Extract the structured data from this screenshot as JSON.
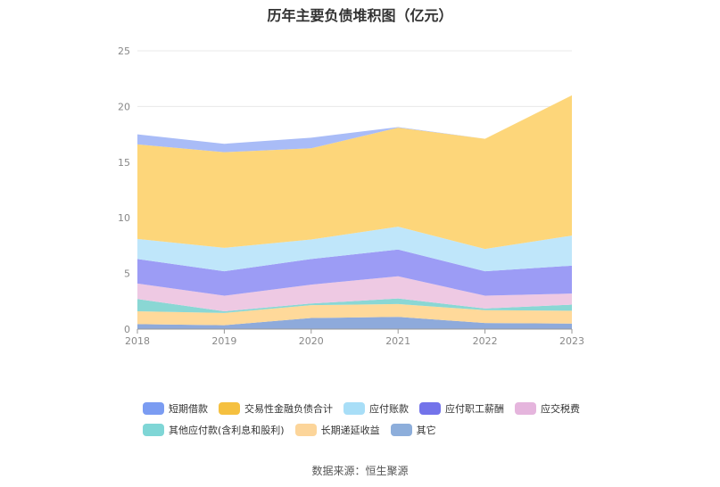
{
  "chart_data": {
    "type": "area",
    "stacked": true,
    "title": "历年主要负债堆积图（亿元）",
    "x": [
      "2018",
      "2019",
      "2020",
      "2021",
      "2022",
      "2023"
    ],
    "ylim": [
      0,
      25
    ],
    "yticks": [
      0,
      5,
      10,
      15,
      20,
      25
    ],
    "grid": true,
    "legend_position": "bottom",
    "series": [
      {
        "name": "其它",
        "color": "#8eaadb",
        "values": [
          0.45,
          0.35,
          1.0,
          1.1,
          0.55,
          0.5
        ]
      },
      {
        "name": "长期递延收益",
        "color": "#ffd99a",
        "values": [
          1.15,
          1.1,
          1.15,
          1.15,
          1.15,
          1.15
        ]
      },
      {
        "name": "其他应付款(含利息和股利)",
        "color": "#8ad7d4",
        "values": [
          1.1,
          0.15,
          0.15,
          0.5,
          0.15,
          0.55
        ]
      },
      {
        "name": "应交税费",
        "color": "#eec9e3",
        "values": [
          1.4,
          1.4,
          1.7,
          2.0,
          1.15,
          1.0
        ]
      },
      {
        "name": "应付职工薪酬",
        "color": "#9c9cf5",
        "values": [
          2.2,
          2.2,
          2.3,
          2.4,
          2.2,
          2.5
        ]
      },
      {
        "name": "应付账款",
        "color": "#bfe6fa",
        "values": [
          1.8,
          2.1,
          1.75,
          2.05,
          2.0,
          2.7
        ]
      },
      {
        "name": "交易性金融负债合计",
        "color": "#fdd67a",
        "values": [
          8.5,
          8.6,
          8.2,
          8.9,
          9.9,
          12.6
        ]
      },
      {
        "name": "短期借款",
        "color": "#a9bcf7",
        "values": [
          0.9,
          0.75,
          0.95,
          0.05,
          0.0,
          0.0
        ]
      }
    ],
    "legend": [
      {
        "name": "短期借款",
        "color": "#7b9cf2"
      },
      {
        "name": "交易性金融负债合计",
        "color": "#f5c040"
      },
      {
        "name": "应付账款",
        "color": "#a8def7"
      },
      {
        "name": "应付职工薪酬",
        "color": "#7373ea"
      },
      {
        "name": "应交税费",
        "color": "#e5b5dd"
      },
      {
        "name": "其他应付款(含利息和股利)",
        "color": "#7fd6d6"
      },
      {
        "name": "长期递延收益",
        "color": "#fcd59a"
      },
      {
        "name": "其它",
        "color": "#8daedb"
      }
    ]
  },
  "footer": {
    "source": "数据来源：恒生聚源"
  }
}
